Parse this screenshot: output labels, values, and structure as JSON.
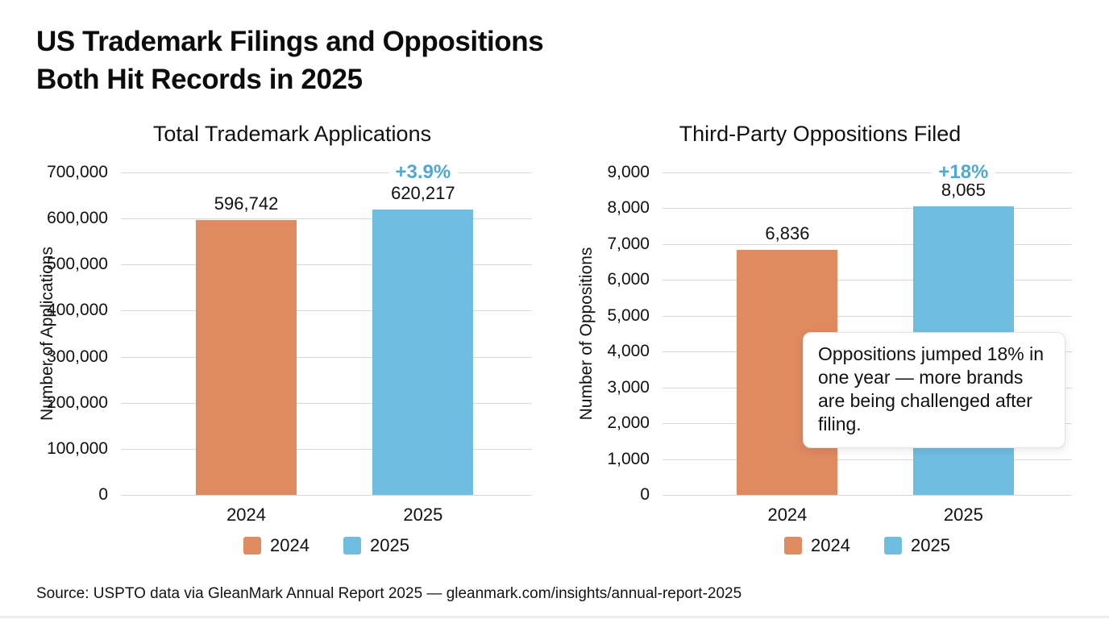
{
  "page": {
    "title_line1": "US Trademark Filings and Oppositions",
    "title_line2": "Both Hit Records in 2025",
    "source": "Source: USPTO data via GleanMark Annual Report 2025 — gleanmark.com/insights/annual-report-2025"
  },
  "colors": {
    "bar_2024": "#df8a61",
    "bar_2025": "#6fbde1",
    "pct_label": "#53a8d0",
    "gridline": "#d9d9d9"
  },
  "annotation": {
    "text": "Oppositions jumped 18% in one year — more brands are being challenged after filing."
  },
  "chart_data": [
    {
      "type": "bar",
      "title": "Total Trademark Applications",
      "ylabel": "Number of Applications",
      "categories": [
        "2024",
        "2025"
      ],
      "values": [
        596742,
        620217
      ],
      "value_labels": [
        "596,742",
        "620,217"
      ],
      "pct_change_label": "+3.9%",
      "ylim": [
        0,
        700000
      ],
      "ytick_step": 100000,
      "ytick_labels": [
        "0",
        "100,000",
        "200,000",
        "300,000",
        "400,000",
        "500,000",
        "600,000",
        "700,000"
      ],
      "grid": true,
      "legend_position": "bottom",
      "legend": [
        {
          "label": "2024",
          "color": "#df8a61"
        },
        {
          "label": "2025",
          "color": "#6fbde1"
        }
      ]
    },
    {
      "type": "bar",
      "title": "Third-Party Oppositions Filed",
      "ylabel": "Number of Oppositions",
      "categories": [
        "2024",
        "2025"
      ],
      "values": [
        6836,
        8065
      ],
      "value_labels": [
        "6,836",
        "8,065"
      ],
      "pct_change_label": "+18%",
      "ylim": [
        0,
        9000
      ],
      "ytick_step": 1000,
      "ytick_labels": [
        "0",
        "1,000",
        "2,000",
        "3,000",
        "4,000",
        "5,000",
        "6,000",
        "7,000",
        "8,000",
        "9,000"
      ],
      "grid": true,
      "legend_position": "bottom",
      "legend": [
        {
          "label": "2024",
          "color": "#df8a61"
        },
        {
          "label": "2025",
          "color": "#6fbde1"
        }
      ]
    }
  ]
}
